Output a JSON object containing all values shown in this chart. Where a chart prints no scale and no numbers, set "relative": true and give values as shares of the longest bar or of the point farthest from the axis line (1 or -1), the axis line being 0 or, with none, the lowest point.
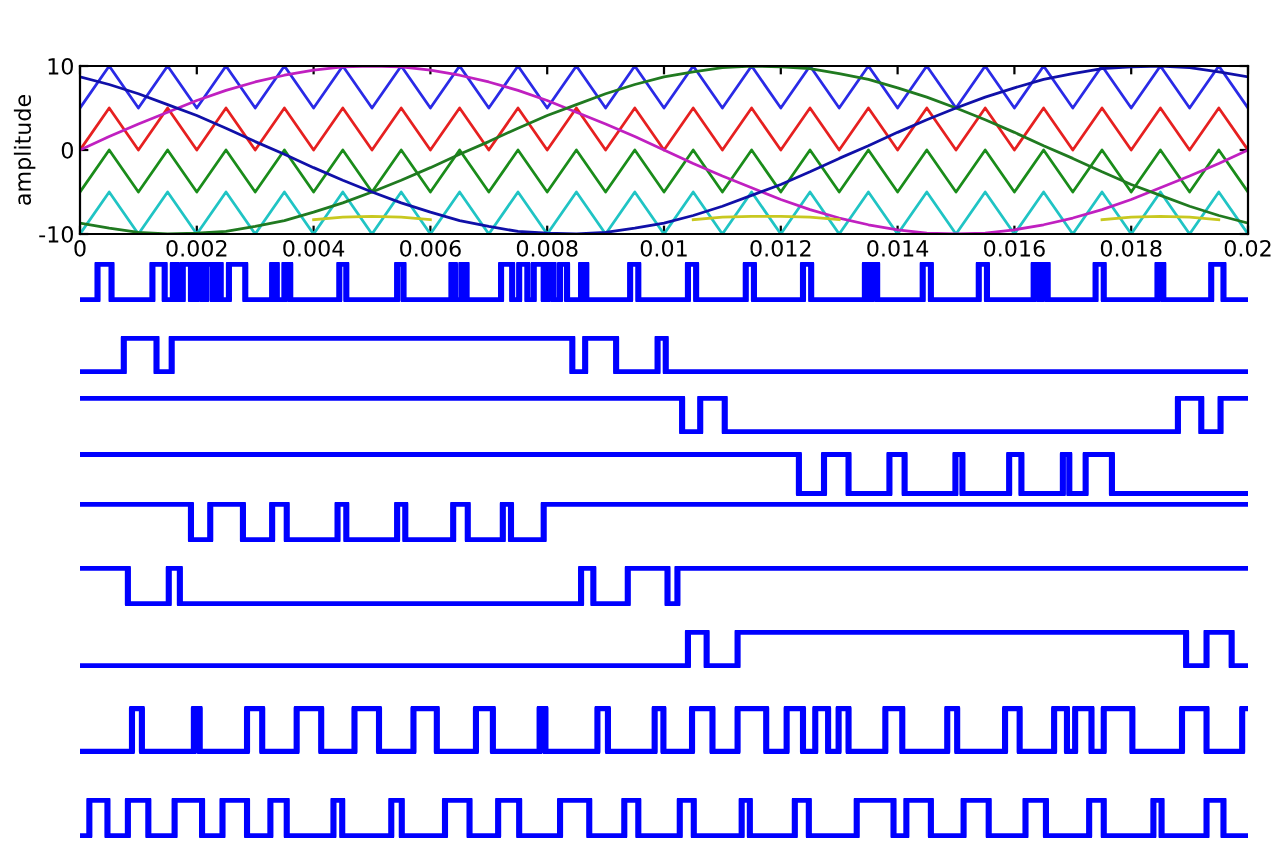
{
  "chart_data": [
    {
      "type": "line",
      "ylabel": "amplitude",
      "xlim": [
        0,
        0.02
      ],
      "ylim": [
        -10,
        10
      ],
      "yticks": [
        -10,
        0,
        10
      ],
      "xticks": [
        0,
        0.002,
        0.004,
        0.006,
        0.008,
        0.01,
        0.012,
        0.014,
        0.016,
        0.018,
        0.02
      ],
      "grid": false,
      "legend": false,
      "x": [
        0,
        0.0005,
        0.001,
        0.0015,
        0.002,
        0.0025,
        0.003,
        0.0035,
        0.004,
        0.0045,
        0.005,
        0.0055,
        0.006,
        0.0065,
        0.007,
        0.0075,
        0.008,
        0.0085,
        0.009,
        0.0095,
        0.01,
        0.0105,
        0.011,
        0.0115,
        0.012,
        0.0125,
        0.013,
        0.0135,
        0.014,
        0.0145,
        0.015,
        0.0155,
        0.016,
        0.0165,
        0.017,
        0.0175,
        0.018,
        0.0185,
        0.019,
        0.0195,
        0.02
      ],
      "series": [
        {
          "color": "#2a2ae6",
          "values": [
            5,
            10,
            5,
            10,
            5,
            10,
            5,
            10,
            5,
            10,
            5,
            10,
            5,
            10,
            5,
            10,
            5,
            10,
            5,
            10,
            5,
            10,
            5,
            10,
            5,
            10,
            5,
            10,
            5,
            10,
            5,
            10,
            5,
            10,
            5,
            10,
            5,
            10,
            5,
            10,
            5
          ]
        },
        {
          "color": "#e62020",
          "values": [
            0,
            5,
            0,
            5,
            0,
            5,
            0,
            5,
            0,
            5,
            0,
            5,
            0,
            5,
            0,
            5,
            0,
            5,
            0,
            5,
            0,
            5,
            0,
            5,
            0,
            5,
            0,
            5,
            0,
            5,
            0,
            5,
            0,
            5,
            0,
            5,
            0,
            5,
            0,
            5,
            0
          ]
        },
        {
          "color": "#1a8c1a",
          "values": [
            -5,
            0,
            -5,
            0,
            -5,
            0,
            -5,
            0,
            -5,
            0,
            -5,
            0,
            -5,
            0,
            -5,
            0,
            -5,
            0,
            -5,
            0,
            -5,
            0,
            -5,
            0,
            -5,
            0,
            -5,
            0,
            -5,
            0,
            -5,
            0,
            -5,
            0,
            -5,
            0,
            -5,
            0,
            -5,
            0,
            -5
          ]
        },
        {
          "color": "#20c4c4",
          "values": [
            -10,
            -5,
            -10,
            -5,
            -10,
            -5,
            -10,
            -5,
            -10,
            -5,
            -10,
            -5,
            -10,
            -5,
            -10,
            -5,
            -10,
            -5,
            -10,
            -5,
            -10,
            -5,
            -10,
            -5,
            -10,
            -5,
            -10,
            -5,
            -10,
            -5,
            -10,
            -5,
            -10,
            -5,
            -10,
            -5,
            -10,
            -5,
            -10,
            -5,
            -10
          ]
        },
        {
          "color": "#c020c0",
          "values": [
            0,
            1.6,
            3.1,
            4.5,
            5.9,
            7.1,
            8.1,
            8.9,
            9.5,
            9.9,
            10,
            9.9,
            9.5,
            8.9,
            8.1,
            7.1,
            5.9,
            4.5,
            3.1,
            1.6,
            0,
            -1.6,
            -3.1,
            -4.5,
            -5.9,
            -7.1,
            -8.1,
            -8.9,
            -9.5,
            -9.9,
            -10,
            -9.9,
            -9.5,
            -8.9,
            -8.1,
            -7.1,
            -5.9,
            -4.5,
            -3.1,
            -1.6,
            0
          ]
        },
        {
          "color": "#207a20",
          "values": [
            -8.7,
            -9.3,
            -9.8,
            -10.0,
            -9.9,
            -9.7,
            -9.1,
            -8.4,
            -7.4,
            -6.3,
            -5.0,
            -3.6,
            -2.1,
            -0.5,
            1.0,
            2.6,
            4.1,
            5.4,
            6.7,
            7.8,
            8.7,
            9.3,
            9.8,
            10.0,
            9.9,
            9.7,
            9.1,
            8.4,
            7.4,
            6.3,
            5.0,
            3.6,
            2.1,
            0.5,
            -1.0,
            -2.6,
            -4.1,
            -5.4,
            -6.7,
            -7.8,
            -8.7
          ]
        },
        {
          "color": "#1010a8",
          "values": [
            8.7,
            7.8,
            6.7,
            5.4,
            4.1,
            2.6,
            1.0,
            -0.5,
            -2.1,
            -3.6,
            -5.0,
            -6.3,
            -7.4,
            -8.4,
            -9.1,
            -9.7,
            -9.9,
            -10.0,
            -9.8,
            -9.3,
            -8.7,
            -7.8,
            -6.7,
            -5.4,
            -4.1,
            -2.6,
            -1.0,
            0.5,
            2.1,
            3.6,
            5.0,
            6.3,
            7.4,
            8.4,
            9.1,
            9.7,
            9.9,
            10.0,
            9.8,
            9.3,
            8.7
          ]
        },
        {
          "color": "#c8c820",
          "values": [
            null,
            null,
            null,
            null,
            null,
            null,
            null,
            null,
            -8.3,
            -8.0,
            -7.9,
            -8.0,
            -8.3,
            null,
            null,
            null,
            null,
            null,
            null,
            null,
            null,
            -8.3,
            -8.0,
            -7.9,
            -7.9,
            -8.0,
            -8.3,
            null,
            null,
            null,
            null,
            null,
            null,
            null,
            null,
            -8.3,
            -8.0,
            -7.9,
            -8.0,
            -8.3,
            null
          ]
        }
      ]
    },
    {
      "type": "step",
      "relative": true,
      "xlim": [
        0,
        0.02
      ],
      "series": [
        {
          "color": "#0000ff",
          "x": [
            0,
            0.0003,
            0.00054,
            0.00124,
            0.00145,
            0.00159,
            0.00166,
            0.00176,
            0.0019,
            0.00199,
            0.00209,
            0.00216,
            0.00227,
            0.00233,
            0.00241,
            0.00255,
            0.00283,
            0.00329,
            0.00337,
            0.0035,
            0.0036,
            0.00444,
            0.00456,
            0.00543,
            0.00554,
            0.00636,
            0.00642,
            0.00653,
            0.00662,
            0.00721,
            0.0074,
            0.00752,
            0.00766,
            0.00777,
            0.00794,
            0.00801,
            0.00811,
            0.00822,
            0.00834,
            0.00858,
            0.00867,
            0.00942,
            0.00956,
            0.01041,
            0.01055,
            0.0114,
            0.01154,
            0.01238,
            0.01252,
            0.01344,
            0.01351,
            0.01355,
            0.01365,
            0.01443,
            0.01457,
            0.01539,
            0.01553,
            0.01633,
            0.01643,
            0.01647,
            0.01657,
            0.01739,
            0.01753,
            0.01845,
            0.01855,
            0.01937,
            0.01958,
            0.02
          ],
          "values": [
            0,
            1,
            0,
            1,
            0,
            1,
            0,
            1,
            0,
            1,
            0,
            1,
            0,
            1,
            0,
            1,
            0,
            1,
            0,
            1,
            0,
            1,
            0,
            1,
            0,
            1,
            0,
            1,
            0,
            1,
            0,
            1,
            0,
            1,
            0,
            1,
            0,
            1,
            0,
            1,
            0,
            1,
            0,
            1,
            0,
            1,
            0,
            1,
            0,
            1,
            0,
            1,
            0,
            1,
            0,
            1,
            0,
            1,
            0,
            1,
            0,
            1,
            0,
            1,
            0,
            1,
            0,
            0
          ]
        }
      ]
    },
    {
      "type": "step",
      "relative": true,
      "xlim": [
        0,
        0.02
      ],
      "series": [
        {
          "color": "#0000ff",
          "x": [
            0,
            0.00075,
            0.00131,
            0.00157,
            0.00843,
            0.00865,
            0.00918,
            0.00989,
            0.01003,
            0.02
          ],
          "values": [
            0,
            1,
            0,
            1,
            0,
            1,
            0,
            1,
            0,
            0
          ]
        }
      ]
    },
    {
      "type": "step",
      "relative": true,
      "xlim": [
        0,
        0.02
      ],
      "series": [
        {
          "color": "#0000ff",
          "x": [
            0,
            0.01031,
            0.01062,
            0.01104,
            0.0188,
            0.0192,
            0.01953,
            0.02
          ],
          "values": [
            1,
            0,
            1,
            0,
            1,
            0,
            1,
            1
          ]
        }
      ]
    },
    {
      "type": "step",
      "relative": true,
      "xlim": [
        0,
        0.02
      ],
      "series": [
        {
          "color": "#0000ff",
          "x": [
            0,
            0.01231,
            0.01274,
            0.01316,
            0.01386,
            0.01412,
            0.01499,
            0.01511,
            0.01591,
            0.01612,
            0.01683,
            0.01694,
            0.01722,
            0.01767,
            0.02
          ],
          "values": [
            1,
            0,
            1,
            0,
            1,
            0,
            1,
            0,
            1,
            0,
            1,
            0,
            1,
            0,
            0
          ]
        }
      ]
    },
    {
      "type": "step",
      "relative": true,
      "xlim": [
        0,
        0.02
      ],
      "series": [
        {
          "color": "#0000ff",
          "x": [
            0,
            0.0019,
            0.00223,
            0.00279,
            0.00329,
            0.00354,
            0.00441,
            0.00456,
            0.00543,
            0.00557,
            0.00639,
            0.00664,
            0.00724,
            0.00738,
            0.00794,
            0.02
          ],
          "values": [
            1,
            0,
            1,
            0,
            1,
            0,
            1,
            0,
            1,
            0,
            1,
            0,
            1,
            0,
            1,
            1
          ]
        }
      ]
    },
    {
      "type": "step",
      "relative": true,
      "xlim": [
        0,
        0.02
      ],
      "series": [
        {
          "color": "#0000ff",
          "x": [
            0,
            0.00082,
            0.00152,
            0.00171,
            0.00858,
            0.00879,
            0.00938,
            0.01006,
            0.01023,
            0.02
          ],
          "values": [
            1,
            0,
            1,
            0,
            1,
            0,
            1,
            0,
            1,
            1
          ]
        }
      ]
    },
    {
      "type": "step",
      "relative": true,
      "xlim": [
        0,
        0.02
      ],
      "series": [
        {
          "color": "#0000ff",
          "x": [
            0,
            0.01041,
            0.01073,
            0.01126,
            0.01894,
            0.01929,
            0.01972,
            0.02
          ],
          "values": [
            0,
            1,
            0,
            1,
            0,
            1,
            0,
            0
          ]
        }
      ]
    },
    {
      "type": "step",
      "relative": true,
      "xlim": [
        0,
        0.02
      ],
      "series": [
        {
          "color": "#0000ff",
          "x": [
            0,
            0.00089,
            0.00106,
            0.00195,
            0.00205,
            0.00286,
            0.00312,
            0.00371,
            0.00413,
            0.0047,
            0.00512,
            0.00571,
            0.00611,
            0.00678,
            0.00707,
            0.00787,
            0.00797,
            0.00886,
            0.00904,
            0.00984,
            0.00999,
            0.01048,
            0.01083,
            0.01126,
            0.01175,
            0.0121,
            0.01238,
            0.01259,
            0.01281,
            0.01299,
            0.01316,
            0.01379,
            0.01408,
            0.01485,
            0.01502,
            0.01584,
            0.01609,
            0.01668,
            0.0169,
            0.01704,
            0.01732,
            0.01753,
            0.01802,
            0.01887,
            0.01929,
            0.0199,
            0.02
          ],
          "values": [
            0,
            1,
            0,
            1,
            0,
            1,
            0,
            1,
            0,
            1,
            0,
            1,
            0,
            1,
            0,
            1,
            0,
            1,
            0,
            1,
            0,
            1,
            0,
            1,
            0,
            1,
            0,
            1,
            0,
            1,
            0,
            1,
            0,
            1,
            0,
            1,
            0,
            1,
            0,
            1,
            0,
            1,
            0,
            1,
            0,
            1,
            1
          ]
        }
      ]
    },
    {
      "type": "step",
      "relative": true,
      "xlim": [
        0,
        0.02
      ],
      "series": [
        {
          "color": "#0000ff",
          "x": [
            0,
            0.00016,
            0.00047,
            0.00082,
            0.00117,
            0.00162,
            0.00209,
            0.00244,
            0.00286,
            0.00326,
            0.00354,
            0.00434,
            0.00449,
            0.00533,
            0.00551,
            0.00625,
            0.00667,
            0.00716,
            0.00752,
            0.00822,
            0.00872,
            0.00932,
            0.00956,
            0.01027,
            0.01051,
            0.01133,
            0.01147,
            0.01224,
            0.01248,
            0.0133,
            0.01393,
            0.01415,
            0.01457,
            0.01513,
            0.01556,
            0.01619,
            0.01654,
            0.01728,
            0.01753,
            0.01838,
            0.01852,
            0.01929,
            0.01958,
            0.02
          ],
          "values": [
            0,
            1,
            0,
            1,
            0,
            1,
            0,
            1,
            0,
            1,
            0,
            1,
            0,
            1,
            0,
            1,
            0,
            1,
            0,
            1,
            0,
            1,
            0,
            1,
            0,
            1,
            0,
            1,
            0,
            1,
            0,
            1,
            0,
            1,
            0,
            1,
            0,
            1,
            0,
            1,
            0,
            1,
            0,
            0
          ]
        }
      ]
    }
  ]
}
